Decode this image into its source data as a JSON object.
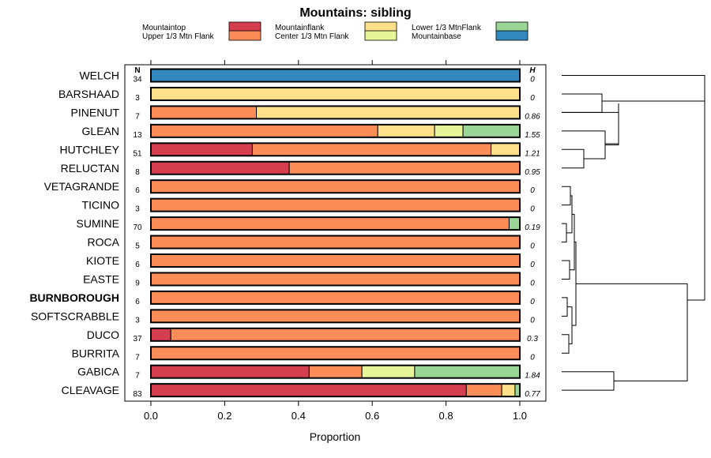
{
  "chart_data": {
    "type": "bar",
    "stacked": true,
    "orientation": "horizontal",
    "title": "Mountains: sibling",
    "xlabel": "Proportion",
    "xlim": [
      0,
      1
    ],
    "xticks": [
      "0.0",
      "0.2",
      "0.4",
      "0.6",
      "0.8",
      "1.0"
    ],
    "n_header": "N",
    "h_header": "H",
    "legend": [
      {
        "name": "Mountaintop",
        "color": "#d53e4f"
      },
      {
        "name": "Upper 1/3 Mtn Flank",
        "color": "#fc8d59"
      },
      {
        "name": "Mountainflank",
        "color": "#fee08b"
      },
      {
        "name": "Center 1/3 Mtn Flank",
        "color": "#e6f598"
      },
      {
        "name": "Lower 1/3 MtnFlank",
        "color": "#99d594"
      },
      {
        "name": "Mountainbase",
        "color": "#3288bd"
      }
    ],
    "rows": [
      {
        "label": "WELCH",
        "n": "34",
        "h": "0",
        "bold": false,
        "values": [
          0,
          0,
          0,
          0,
          0,
          1
        ]
      },
      {
        "label": "BARSHAAD",
        "n": "3",
        "h": "0",
        "bold": false,
        "values": [
          0,
          0,
          1,
          0,
          0,
          0
        ]
      },
      {
        "label": "PINENUT",
        "n": "7",
        "h": "0.86",
        "bold": false,
        "values": [
          0,
          0.286,
          0.714,
          0,
          0,
          0
        ]
      },
      {
        "label": "GLEAN",
        "n": "13",
        "h": "1.55",
        "bold": false,
        "values": [
          0,
          0.615,
          0.154,
          0.077,
          0.154,
          0
        ]
      },
      {
        "label": "HUTCHLEY",
        "n": "51",
        "h": "1.21",
        "bold": false,
        "values": [
          0.275,
          0.647,
          0.078,
          0,
          0,
          0
        ]
      },
      {
        "label": "RELUCTAN",
        "n": "8",
        "h": "0.95",
        "bold": false,
        "values": [
          0.375,
          0.625,
          0,
          0,
          0,
          0
        ]
      },
      {
        "label": "VETAGRANDE",
        "n": "6",
        "h": "0",
        "bold": false,
        "values": [
          0,
          1,
          0,
          0,
          0,
          0
        ]
      },
      {
        "label": "TICINO",
        "n": "3",
        "h": "0",
        "bold": false,
        "values": [
          0,
          1,
          0,
          0,
          0,
          0
        ]
      },
      {
        "label": "SUMINE",
        "n": "70",
        "h": "0.19",
        "bold": false,
        "values": [
          0,
          0.971,
          0,
          0,
          0.029,
          0
        ]
      },
      {
        "label": "ROCA",
        "n": "5",
        "h": "0",
        "bold": false,
        "values": [
          0,
          1,
          0,
          0,
          0,
          0
        ]
      },
      {
        "label": "KIOTE",
        "n": "6",
        "h": "0",
        "bold": false,
        "values": [
          0,
          1,
          0,
          0,
          0,
          0
        ]
      },
      {
        "label": "EASTE",
        "n": "9",
        "h": "0",
        "bold": false,
        "values": [
          0,
          1,
          0,
          0,
          0,
          0
        ]
      },
      {
        "label": "BURNBOROUGH",
        "n": "6",
        "h": "0",
        "bold": true,
        "values": [
          0,
          1,
          0,
          0,
          0,
          0
        ]
      },
      {
        "label": "SOFTSCRABBLE",
        "n": "3",
        "h": "0",
        "bold": false,
        "values": [
          0,
          1,
          0,
          0,
          0,
          0
        ]
      },
      {
        "label": "DUCO",
        "n": "37",
        "h": "0.3",
        "bold": false,
        "values": [
          0.054,
          0.946,
          0,
          0,
          0,
          0
        ]
      },
      {
        "label": "BURRITA",
        "n": "7",
        "h": "0",
        "bold": false,
        "values": [
          0,
          1,
          0,
          0,
          0,
          0
        ]
      },
      {
        "label": "GABICA",
        "n": "7",
        "h": "1.84",
        "bold": false,
        "values": [
          0.429,
          0.143,
          0,
          0.143,
          0.286,
          0
        ]
      },
      {
        "label": "CLEAVAGE",
        "n": "83",
        "h": "0.77",
        "bold": false,
        "values": [
          0.855,
          0.096,
          0.036,
          0,
          0.012,
          0
        ]
      }
    ],
    "dendrogram": "hierarchical clustering tree of the rows (unlabeled)"
  }
}
